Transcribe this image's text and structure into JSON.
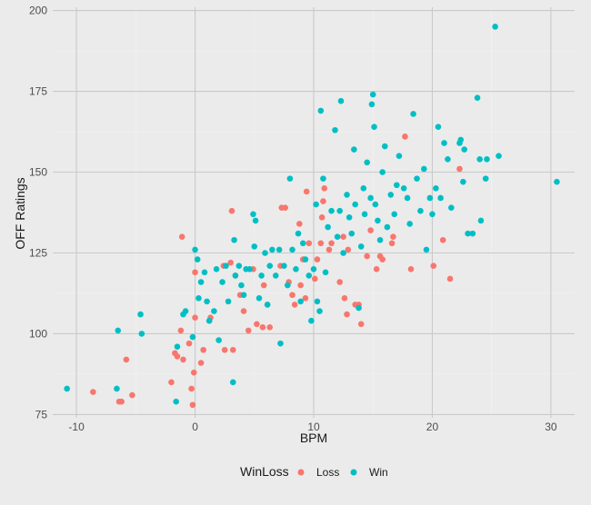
{
  "chart_data": {
    "type": "scatter",
    "title": "",
    "xlabel": "BPM",
    "ylabel": "OFF Ratings",
    "xlim": [
      -12,
      32
    ],
    "ylim": [
      74,
      201
    ],
    "xticks": [
      -10,
      0,
      10,
      20,
      30
    ],
    "yticks": [
      75,
      100,
      125,
      150,
      175,
      200
    ],
    "xtick_labels": [
      "-10",
      "0",
      "10",
      "20",
      "30"
    ],
    "ytick_labels": [
      "75",
      "100",
      "125",
      "150",
      "175",
      "200"
    ],
    "grid": true,
    "legend": {
      "title": "WinLoss",
      "position": "bottom",
      "entries": [
        "Loss",
        "Win"
      ]
    },
    "series": [
      {
        "name": "Loss",
        "color": "#F8766D",
        "points": [
          [
            -8.6,
            82
          ],
          [
            -6.4,
            79
          ],
          [
            -6.2,
            79
          ],
          [
            -5.8,
            92
          ],
          [
            -5.3,
            81
          ],
          [
            -2.0,
            85
          ],
          [
            -1.7,
            94
          ],
          [
            -1.5,
            93
          ],
          [
            -1.2,
            101
          ],
          [
            -1.0,
            92
          ],
          [
            -1.1,
            130
          ],
          [
            -0.5,
            97
          ],
          [
            -0.3,
            83
          ],
          [
            -0.2,
            78
          ],
          [
            -0.1,
            88
          ],
          [
            0.0,
            119
          ],
          [
            0.0,
            105
          ],
          [
            0.5,
            91
          ],
          [
            0.7,
            95
          ],
          [
            1.2,
            104
          ],
          [
            1.3,
            105
          ],
          [
            2.4,
            121
          ],
          [
            2.5,
            95
          ],
          [
            3.0,
            122
          ],
          [
            3.2,
            95
          ],
          [
            3.1,
            138
          ],
          [
            3.4,
            118
          ],
          [
            3.8,
            112
          ],
          [
            4.1,
            107
          ],
          [
            4.5,
            101
          ],
          [
            4.9,
            120
          ],
          [
            5.2,
            103
          ],
          [
            5.7,
            102
          ],
          [
            5.8,
            115
          ],
          [
            6.1,
            109
          ],
          [
            6.3,
            102
          ],
          [
            7.2,
            121
          ],
          [
            7.3,
            139
          ],
          [
            7.6,
            139
          ],
          [
            7.9,
            116
          ],
          [
            8.2,
            112
          ],
          [
            8.4,
            109
          ],
          [
            8.8,
            134
          ],
          [
            8.9,
            115
          ],
          [
            9.1,
            123
          ],
          [
            9.3,
            111
          ],
          [
            9.4,
            144
          ],
          [
            9.6,
            128
          ],
          [
            10.1,
            117
          ],
          [
            10.3,
            123
          ],
          [
            10.6,
            128
          ],
          [
            10.7,
            136
          ],
          [
            10.8,
            141
          ],
          [
            10.9,
            145
          ],
          [
            11.3,
            126
          ],
          [
            11.5,
            128
          ],
          [
            12.2,
            116
          ],
          [
            12.5,
            130
          ],
          [
            12.6,
            111
          ],
          [
            12.8,
            106
          ],
          [
            12.9,
            126
          ],
          [
            13.5,
            109
          ],
          [
            13.8,
            109
          ],
          [
            14.0,
            103
          ],
          [
            14.5,
            124
          ],
          [
            14.8,
            132
          ],
          [
            15.3,
            120
          ],
          [
            15.6,
            124
          ],
          [
            15.8,
            123
          ],
          [
            16.6,
            128
          ],
          [
            16.7,
            130
          ],
          [
            17.7,
            161
          ],
          [
            18.2,
            120
          ],
          [
            20.1,
            121
          ],
          [
            20.9,
            129
          ],
          [
            21.5,
            117
          ],
          [
            22.3,
            151
          ]
        ]
      },
      {
        "name": "Win",
        "color": "#00BFC4",
        "points": [
          [
            -10.8,
            83
          ],
          [
            -6.5,
            101
          ],
          [
            -6.6,
            83
          ],
          [
            -4.6,
            106
          ],
          [
            -4.5,
            100
          ],
          [
            -1.6,
            79
          ],
          [
            -1.5,
            96
          ],
          [
            -1.0,
            106
          ],
          [
            -0.8,
            107
          ],
          [
            -0.2,
            99
          ],
          [
            0.0,
            126
          ],
          [
            0.2,
            123
          ],
          [
            0.3,
            111
          ],
          [
            0.5,
            116
          ],
          [
            0.8,
            119
          ],
          [
            1.0,
            110
          ],
          [
            1.2,
            104
          ],
          [
            1.6,
            107
          ],
          [
            1.8,
            120
          ],
          [
            2.0,
            98
          ],
          [
            2.3,
            116
          ],
          [
            2.6,
            121
          ],
          [
            2.8,
            110
          ],
          [
            3.2,
            85
          ],
          [
            3.3,
            129
          ],
          [
            3.4,
            118
          ],
          [
            3.7,
            121
          ],
          [
            3.9,
            115
          ],
          [
            4.1,
            112
          ],
          [
            4.3,
            120
          ],
          [
            4.6,
            120
          ],
          [
            4.9,
            137
          ],
          [
            5.1,
            135
          ],
          [
            5.0,
            127
          ],
          [
            5.4,
            111
          ],
          [
            5.6,
            118
          ],
          [
            5.9,
            125
          ],
          [
            6.1,
            109
          ],
          [
            6.3,
            121
          ],
          [
            6.5,
            126
          ],
          [
            6.8,
            118
          ],
          [
            7.1,
            126
          ],
          [
            7.2,
            97
          ],
          [
            7.5,
            121
          ],
          [
            7.8,
            115
          ],
          [
            8.0,
            148
          ],
          [
            8.2,
            126
          ],
          [
            8.5,
            120
          ],
          [
            8.7,
            131
          ],
          [
            8.9,
            110
          ],
          [
            9.1,
            128
          ],
          [
            9.3,
            123
          ],
          [
            9.6,
            118
          ],
          [
            9.8,
            104
          ],
          [
            10.0,
            120
          ],
          [
            10.2,
            140
          ],
          [
            10.3,
            110
          ],
          [
            10.5,
            107
          ],
          [
            10.6,
            169
          ],
          [
            10.8,
            148
          ],
          [
            11.0,
            119
          ],
          [
            11.2,
            133
          ],
          [
            11.5,
            138
          ],
          [
            11.8,
            163
          ],
          [
            12.0,
            130
          ],
          [
            12.2,
            138
          ],
          [
            12.3,
            172
          ],
          [
            12.5,
            125
          ],
          [
            12.8,
            143
          ],
          [
            13.0,
            136
          ],
          [
            13.2,
            131
          ],
          [
            13.4,
            157
          ],
          [
            13.5,
            140
          ],
          [
            13.8,
            108
          ],
          [
            14.0,
            127
          ],
          [
            14.2,
            145
          ],
          [
            14.3,
            137
          ],
          [
            14.5,
            153
          ],
          [
            14.8,
            142
          ],
          [
            14.9,
            171
          ],
          [
            15.0,
            174
          ],
          [
            15.1,
            164
          ],
          [
            15.2,
            140
          ],
          [
            15.4,
            135
          ],
          [
            15.6,
            129
          ],
          [
            15.8,
            150
          ],
          [
            16.0,
            158
          ],
          [
            16.2,
            133
          ],
          [
            16.5,
            143
          ],
          [
            16.8,
            137
          ],
          [
            17.0,
            146
          ],
          [
            17.2,
            155
          ],
          [
            17.6,
            145
          ],
          [
            17.9,
            142
          ],
          [
            18.1,
            134
          ],
          [
            18.4,
            168
          ],
          [
            18.7,
            148
          ],
          [
            19.0,
            138
          ],
          [
            19.3,
            151
          ],
          [
            19.5,
            126
          ],
          [
            19.8,
            142
          ],
          [
            20.0,
            137
          ],
          [
            20.3,
            145
          ],
          [
            20.5,
            164
          ],
          [
            20.7,
            142
          ],
          [
            21.0,
            159
          ],
          [
            21.3,
            154
          ],
          [
            21.6,
            139
          ],
          [
            22.3,
            159
          ],
          [
            22.4,
            160
          ],
          [
            22.6,
            147
          ],
          [
            22.7,
            157
          ],
          [
            23.0,
            131
          ],
          [
            23.4,
            131
          ],
          [
            23.8,
            173
          ],
          [
            24.0,
            154
          ],
          [
            24.1,
            135
          ],
          [
            24.5,
            148
          ],
          [
            24.6,
            154
          ],
          [
            25.3,
            195
          ],
          [
            25.6,
            155
          ],
          [
            30.5,
            147
          ]
        ]
      }
    ]
  }
}
